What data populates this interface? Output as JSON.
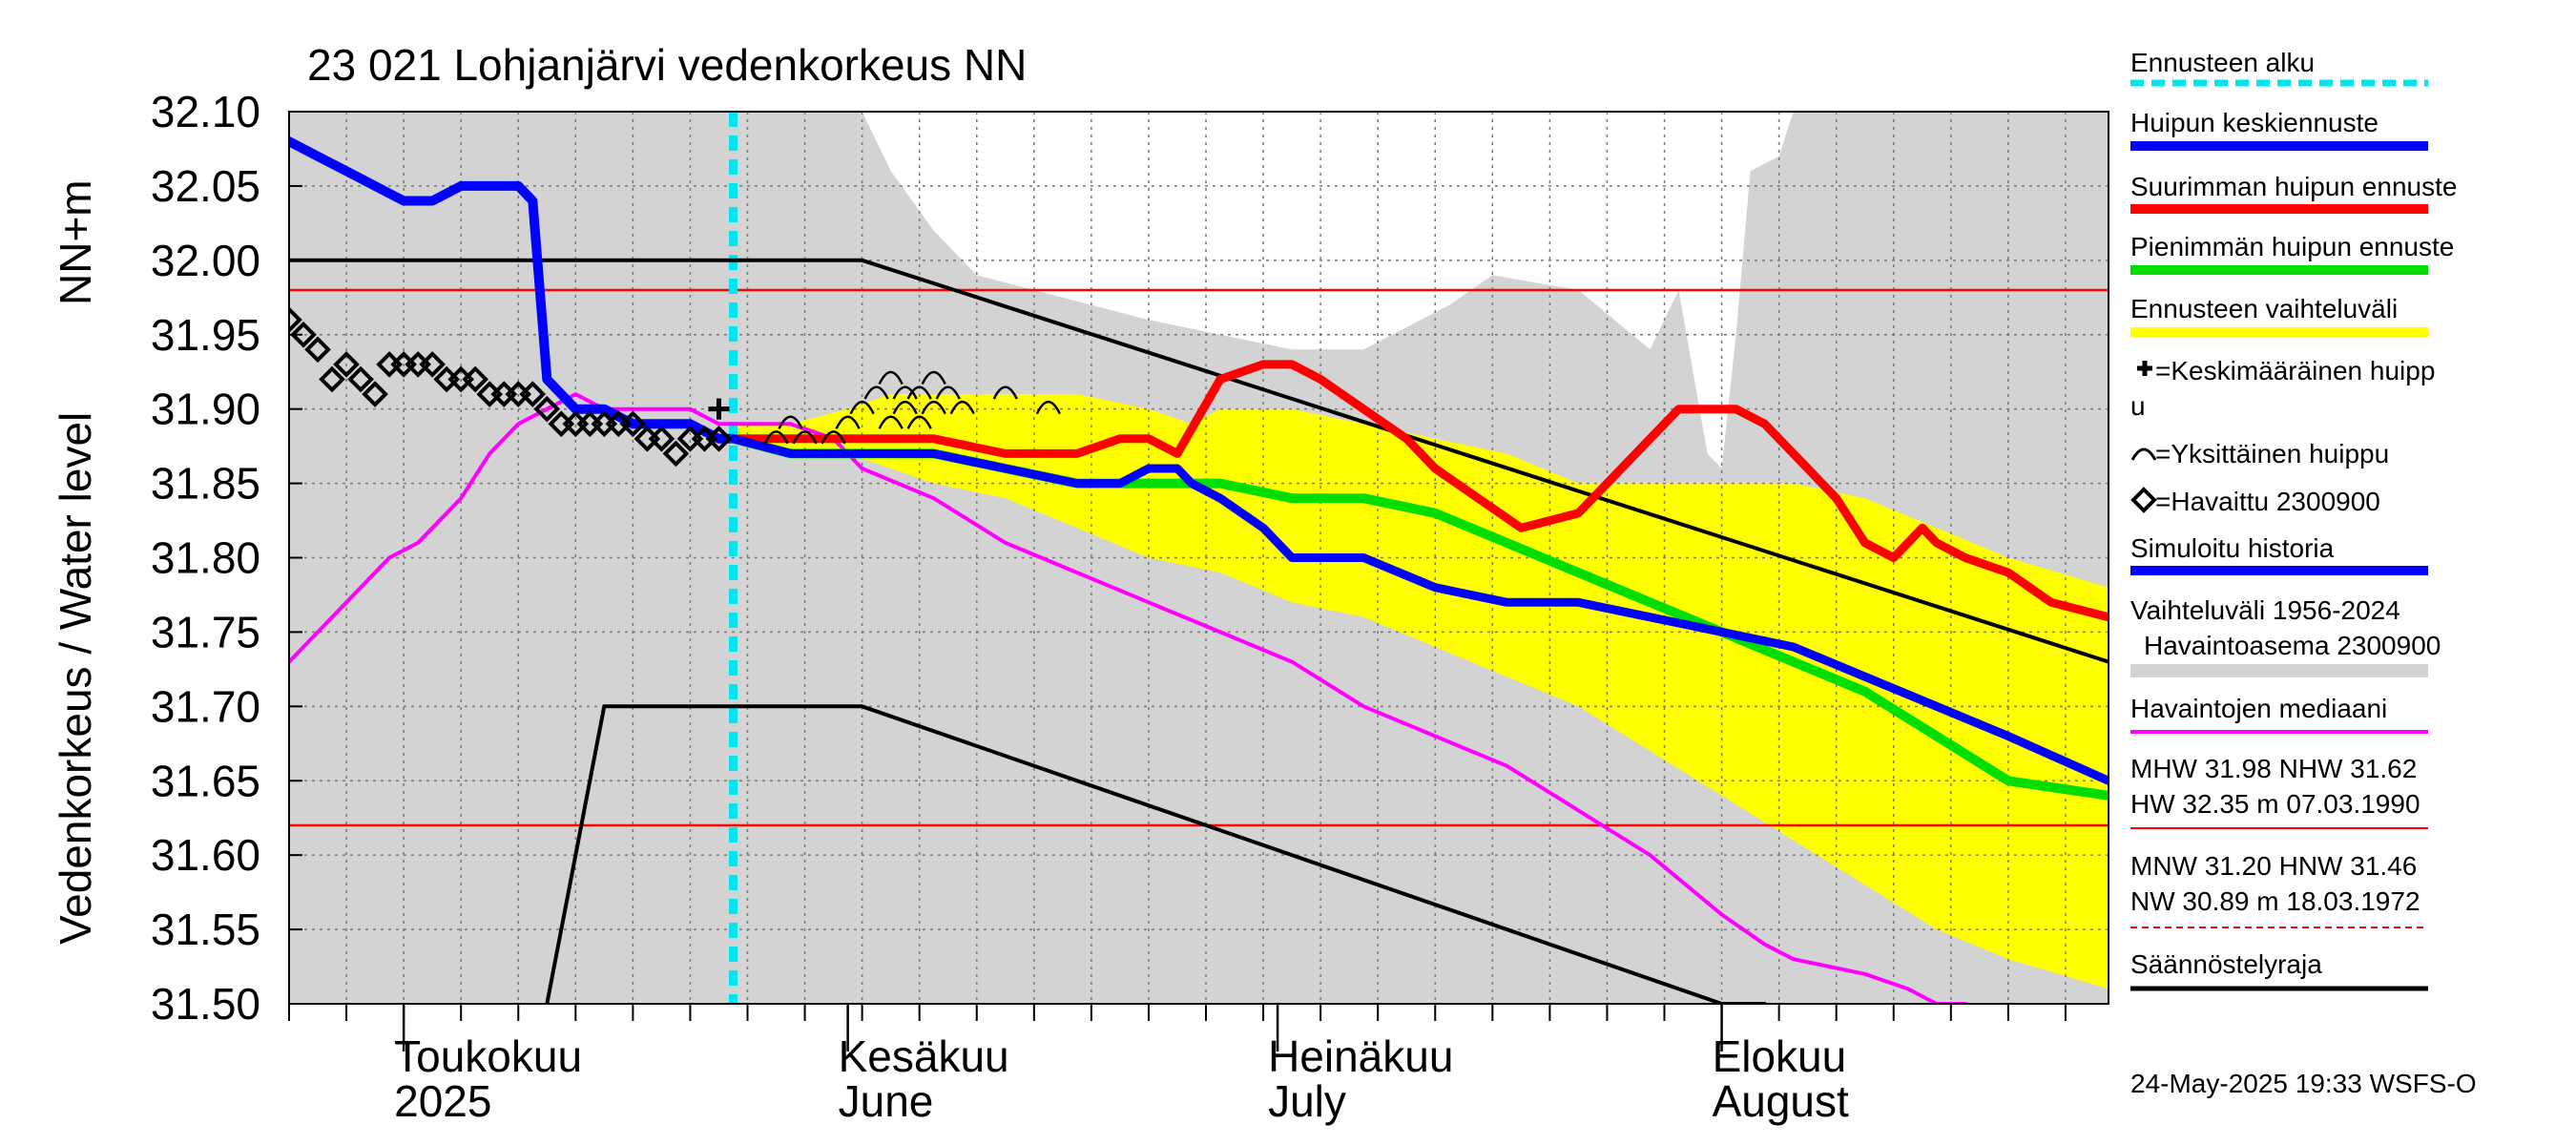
{
  "chart_data": {
    "type": "line",
    "title": "23 021 Lohjanjärvi vedenkorkeus NN",
    "ylabel_fi": "Vedenkorkeus / Water level",
    "ylabel_unit": "NN+m",
    "ylim": [
      31.5,
      32.1
    ],
    "yticks": [
      "32.10",
      "32.05",
      "32.00",
      "31.95",
      "31.90",
      "31.85",
      "31.80",
      "31.75",
      "31.70",
      "31.65",
      "31.60",
      "31.55",
      "31.50"
    ],
    "xlim_days": [
      0,
      127
    ],
    "months": [
      {
        "fi": "Toukokuu",
        "en": "2025",
        "day": 8
      },
      {
        "fi": "Kesäkuu",
        "en": "June",
        "day": 39
      },
      {
        "fi": "Heinäkuu",
        "en": "July",
        "day": 69
      },
      {
        "fi": "Elokuu",
        "en": "August",
        "day": 100
      }
    ],
    "forecast_start_day": 31,
    "reference_lines": [
      {
        "name": "MHW",
        "value": 31.98,
        "color": "#ff0000"
      },
      {
        "name": "NHW",
        "value": 31.62,
        "color": "#ff0000"
      }
    ],
    "series": [
      {
        "name": "Vaihteluväli 1956-2024 upper",
        "color": "#d3d3d3",
        "x": [
          0,
          31,
          38,
          39,
          40,
          42,
          45,
          48,
          60,
          70,
          75,
          81,
          84,
          90,
          95,
          97,
          99,
          100,
          101,
          102,
          104,
          105,
          108,
          110,
          127
        ],
        "y": [
          32.1,
          32.1,
          32.1,
          32.1,
          32.1,
          32.06,
          32.02,
          31.99,
          31.96,
          31.94,
          31.94,
          31.97,
          31.99,
          31.98,
          31.94,
          31.98,
          31.87,
          31.86,
          31.95,
          32.06,
          32.07,
          32.1,
          32.1,
          32.1,
          32.1
        ]
      },
      {
        "name": "Vaihteluväli 1956-2024 lower",
        "color": "#d3d3d3",
        "x": [
          0,
          30,
          40,
          50,
          60,
          70,
          80,
          90,
          100,
          110,
          120,
          127
        ],
        "y": [
          31.5,
          31.5,
          31.5,
          31.5,
          31.5,
          31.5,
          31.5,
          31.5,
          31.5,
          31.5,
          31.5,
          31.5
        ]
      },
      {
        "name": "Ennusteen vaihteluväli upper",
        "color": "#ffff00",
        "x": [
          31,
          35,
          39,
          42,
          45,
          50,
          55,
          60,
          63,
          65,
          70,
          75,
          80,
          85,
          90,
          95,
          100,
          105,
          110,
          115,
          120,
          127
        ],
        "y": [
          31.89,
          31.89,
          31.9,
          31.91,
          31.91,
          31.91,
          31.91,
          31.9,
          31.89,
          31.9,
          31.9,
          31.89,
          31.88,
          31.87,
          31.85,
          31.85,
          31.85,
          31.85,
          31.84,
          31.82,
          31.8,
          31.78
        ]
      },
      {
        "name": "Ennusteen vaihteluväli lower",
        "color": "#ffff00",
        "x": [
          31,
          35,
          39,
          45,
          50,
          55,
          60,
          65,
          70,
          75,
          80,
          85,
          90,
          95,
          100,
          105,
          110,
          115,
          120,
          127
        ],
        "y": [
          31.88,
          31.87,
          31.87,
          31.85,
          31.84,
          31.82,
          31.8,
          31.79,
          31.77,
          31.76,
          31.74,
          31.72,
          31.7,
          31.67,
          31.64,
          31.61,
          31.58,
          31.55,
          31.53,
          31.51
        ]
      },
      {
        "name": "Havaintojen mediaani",
        "color": "#ff00ff",
        "x": [
          0,
          5,
          7,
          9,
          10,
          11,
          12,
          14,
          16,
          18,
          20,
          22,
          25,
          28,
          30,
          31,
          33,
          35,
          38,
          40,
          45,
          50,
          55,
          60,
          65,
          70,
          75,
          80,
          85,
          90,
          95,
          100,
          103,
          105,
          110,
          113,
          115,
          117
        ],
        "y": [
          31.73,
          31.78,
          31.8,
          31.81,
          31.82,
          31.83,
          31.84,
          31.87,
          31.89,
          31.9,
          31.91,
          31.9,
          31.9,
          31.9,
          31.89,
          31.89,
          31.89,
          31.89,
          31.88,
          31.86,
          31.84,
          31.81,
          31.79,
          31.77,
          31.75,
          31.73,
          31.7,
          31.68,
          31.66,
          31.63,
          31.6,
          31.56,
          31.54,
          31.53,
          31.52,
          31.51,
          31.5,
          31.5
        ]
      },
      {
        "name": "Säännöstelyraja upper",
        "color": "#000000",
        "x": [
          0,
          40,
          127
        ],
        "y": [
          32.0,
          32.0,
          31.73
        ]
      },
      {
        "name": "Säännöstelyraja lower",
        "color": "#000000",
        "x": [
          18,
          22,
          40,
          100,
          103
        ],
        "y": [
          31.5,
          31.7,
          31.7,
          31.5,
          31.5
        ]
      },
      {
        "name": "Simuloitu historia",
        "color": "#0000ff",
        "x": [
          0,
          2,
          4,
          6,
          8,
          10,
          12,
          14,
          16,
          17,
          18,
          19,
          20,
          22,
          24,
          26,
          28,
          30,
          31
        ],
        "y": [
          32.08,
          32.07,
          32.06,
          32.05,
          32.04,
          32.04,
          32.05,
          32.05,
          32.05,
          32.04,
          31.92,
          31.91,
          31.9,
          31.9,
          31.89,
          31.89,
          31.89,
          31.88,
          31.88
        ]
      },
      {
        "name": "Huipun keskiennuste",
        "color": "#0000ff",
        "x": [
          31,
          35,
          39,
          42,
          45,
          50,
          55,
          58,
          60,
          62,
          63,
          65,
          68,
          70,
          75,
          80,
          85,
          90,
          95,
          100,
          105,
          110,
          115,
          120,
          127
        ],
        "y": [
          31.88,
          31.87,
          31.87,
          31.87,
          31.87,
          31.86,
          31.85,
          31.85,
          31.86,
          31.86,
          31.85,
          31.84,
          31.82,
          31.8,
          31.8,
          31.78,
          31.77,
          31.77,
          31.76,
          31.75,
          31.74,
          31.72,
          31.7,
          31.68,
          31.65
        ]
      },
      {
        "name": "Suurimman huipun ennuste",
        "color": "#ff0000",
        "x": [
          31,
          35,
          39,
          42,
          45,
          50,
          55,
          58,
          60,
          62,
          65,
          68,
          70,
          72,
          75,
          78,
          80,
          83,
          86,
          90,
          93,
          95,
          97,
          99,
          100,
          101,
          103,
          105,
          108,
          110,
          112,
          114,
          115,
          117,
          120,
          123,
          127
        ],
        "y": [
          31.88,
          31.88,
          31.88,
          31.88,
          31.88,
          31.87,
          31.87,
          31.88,
          31.88,
          31.87,
          31.92,
          31.93,
          31.93,
          31.92,
          31.9,
          31.88,
          31.86,
          31.84,
          31.82,
          31.83,
          31.86,
          31.88,
          31.9,
          31.9,
          31.9,
          31.9,
          31.89,
          31.87,
          31.84,
          31.81,
          31.8,
          31.82,
          31.81,
          31.8,
          31.79,
          31.77,
          31.76
        ]
      },
      {
        "name": "Pienimmän huipun ennuste",
        "color": "#00dd00",
        "x": [
          31,
          35,
          39,
          42,
          45,
          50,
          55,
          60,
          65,
          70,
          75,
          80,
          85,
          90,
          95,
          100,
          105,
          110,
          115,
          120,
          127
        ],
        "y": [
          31.88,
          31.87,
          31.87,
          31.87,
          31.87,
          31.86,
          31.85,
          31.85,
          31.85,
          31.84,
          31.84,
          31.83,
          31.81,
          31.79,
          31.77,
          31.75,
          31.73,
          31.71,
          31.68,
          31.65,
          31.64
        ]
      }
    ],
    "observed_points": {
      "name": "Havaittu 2300900",
      "x": [
        0,
        1,
        2,
        3,
        4,
        5,
        6,
        7,
        8,
        9,
        10,
        11,
        12,
        13,
        14,
        15,
        16,
        17,
        18,
        19,
        20,
        21,
        22,
        23,
        24,
        25,
        26,
        27,
        28,
        29,
        30
      ],
      "y": [
        31.96,
        31.95,
        31.94,
        31.92,
        31.93,
        31.92,
        31.91,
        31.93,
        31.93,
        31.93,
        31.93,
        31.92,
        31.92,
        31.92,
        31.91,
        31.91,
        31.91,
        31.91,
        31.9,
        31.89,
        31.89,
        31.89,
        31.89,
        31.89,
        31.89,
        31.88,
        31.88,
        31.87,
        31.88,
        31.88,
        31.88
      ]
    },
    "mean_peak": {
      "x": 30,
      "y": 31.9
    },
    "individual_peaks": {
      "x": [
        34,
        35,
        36,
        38,
        39,
        40,
        41,
        42,
        42,
        43,
        43,
        44,
        44,
        45,
        45,
        46,
        47,
        50,
        53
      ],
      "y": [
        31.88,
        31.89,
        31.88,
        31.88,
        31.89,
        31.9,
        31.91,
        31.89,
        31.92,
        31.9,
        31.91,
        31.89,
        31.91,
        31.9,
        31.92,
        31.91,
        31.9,
        31.91,
        31.9
      ]
    },
    "legend": {
      "forecast_start": "Ennusteen alku",
      "mean_forecast": "Huipun keskiennuste",
      "max_forecast": "Suurimman huipun ennuste",
      "min_forecast": "Pienimmän huipun ennuste",
      "range": "Ennusteen vaihteluväli",
      "mean_peak_a": "=Keskimääräinen huipp",
      "mean_peak_b": "u",
      "single_peak": "=Yksittäinen huippu",
      "observed": "=Havaittu 2300900",
      "simulated": "Simuloitu historia",
      "hist_range_a": "Vaihteluväli 1956-2024",
      "hist_range_b": "Havaintoasema 2300900",
      "median": "Havaintojen mediaani",
      "mhw_a": "MHW  31.98 NHW  31.62",
      "mhw_b": "HW  32.35 m 07.03.1990",
      "mnw_a": "MNW  31.20 HNW  31.46",
      "mnw_b": "NW  30.89 m 18.03.1972",
      "regulation": "Säännöstelyraja"
    },
    "timestamp": "24-May-2025 19:33 WSFS-O"
  }
}
